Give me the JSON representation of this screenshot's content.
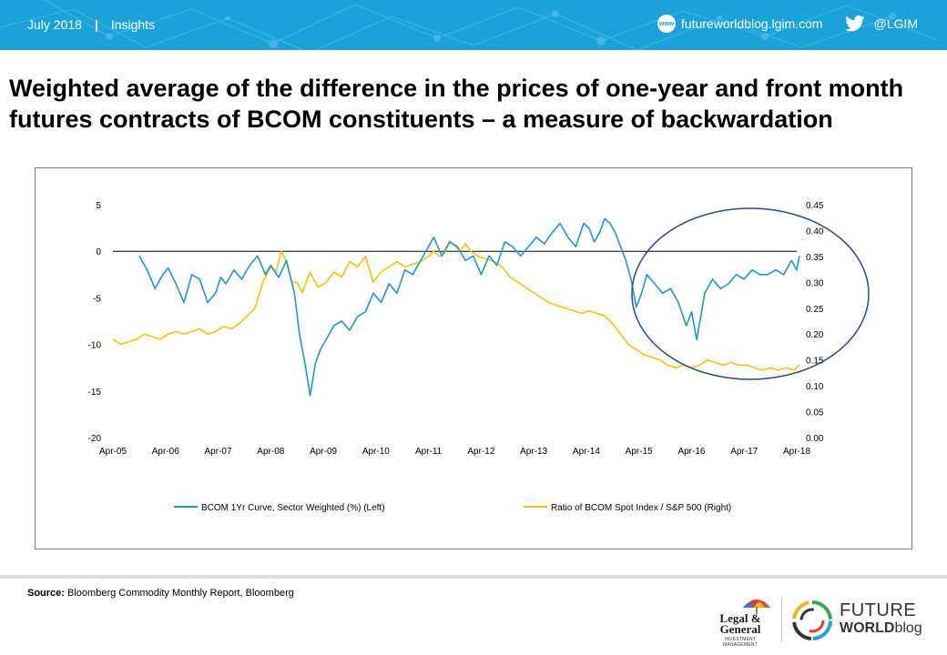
{
  "header": {
    "date": "July 2018",
    "separator": "|",
    "section": "Insights",
    "www_icon_label": "www",
    "website": "futureworldblog.lgim.com",
    "twitter_handle": "@LGIM"
  },
  "title_line1": "Weighted average of the difference in the prices of one-year and front month",
  "title_line2": "futures contracts of BCOM constituents – a measure of backwardation",
  "footer": {
    "source_label": "Source:",
    "source_text": " Bloomberg Commodity Monthly Report, Bloomberg",
    "lg_logo_line1": "Legal &",
    "lg_logo_line2": "General",
    "lg_logo_sub": "INVESTMENT MANAGEMENT",
    "fw_logo_line1": "FUTURE",
    "fw_logo_line2a": "WORLD",
    "fw_logo_line2b": "blog"
  },
  "colors": {
    "header_bg": "#1aa3d9",
    "series_left": "#1b9ad0",
    "series_right": "#ffc000",
    "circle": "#2e4a7d"
  },
  "chart_data": {
    "type": "line",
    "categories": [
      "Apr-05",
      "Apr-06",
      "Apr-07",
      "Apr-08",
      "Apr-09",
      "Apr-10",
      "Apr-11",
      "Apr-12",
      "Apr-13",
      "Apr-14",
      "Apr-15",
      "Apr-16",
      "Apr-17",
      "Apr-18"
    ],
    "y_left": {
      "min": -20,
      "max": 5,
      "ticks": [
        "5",
        "0",
        "-5",
        "-10",
        "-15",
        "-20"
      ]
    },
    "y_right": {
      "min": 0.0,
      "max": 0.45,
      "ticks": [
        "0.45",
        "0.40",
        "0.35",
        "0.30",
        "0.25",
        "0.20",
        "0.15",
        "0.10",
        "0.05",
        "0.00"
      ]
    },
    "legend_position": "bottom",
    "annotation": "ellipse around Apr-15 to Apr-18",
    "series": [
      {
        "name": "BCOM 1Yr Curve, Sector Weighted (%) (Left)",
        "axis": "left",
        "color": "#1b9ad0",
        "x": [
          2005.5,
          2005.65,
          2005.8,
          2005.95,
          2006.05,
          2006.2,
          2006.35,
          2006.5,
          2006.65,
          2006.8,
          2006.95,
          2007.05,
          2007.15,
          2007.3,
          2007.45,
          2007.6,
          2007.75,
          2007.9,
          2008.0,
          2008.15,
          2008.3,
          2008.45,
          2008.55,
          2008.65,
          2008.75,
          2008.85,
          2008.95,
          2009.05,
          2009.2,
          2009.35,
          2009.5,
          2009.65,
          2009.8,
          2009.95,
          2010.1,
          2010.25,
          2010.4,
          2010.55,
          2010.7,
          2010.85,
          2011.0,
          2011.1,
          2011.25,
          2011.4,
          2011.55,
          2011.7,
          2011.85,
          2012.0,
          2012.15,
          2012.3,
          2012.45,
          2012.6,
          2012.75,
          2012.9,
          2013.05,
          2013.2,
          2013.35,
          2013.5,
          2013.65,
          2013.8,
          2013.95,
          2014.05,
          2014.15,
          2014.25,
          2014.35,
          2014.45,
          2014.55,
          2014.65,
          2014.75,
          2014.85,
          2014.95,
          2015.05,
          2015.15,
          2015.3,
          2015.45,
          2015.6,
          2015.75,
          2015.9,
          2016.0,
          2016.1,
          2016.25,
          2016.4,
          2016.55,
          2016.7,
          2016.85,
          2017.0,
          2017.15,
          2017.3,
          2017.45,
          2017.6,
          2017.75,
          2017.9,
          2018.0,
          2018.05
        ],
        "values": [
          -0.5,
          -2.0,
          -4.0,
          -2.5,
          -1.8,
          -3.5,
          -5.5,
          -2.5,
          -3.0,
          -5.5,
          -4.5,
          -2.8,
          -3.5,
          -2.0,
          -3.0,
          -1.5,
          -0.5,
          -2.5,
          -1.5,
          -2.8,
          -1.0,
          -4.5,
          -9.0,
          -12.0,
          -15.5,
          -12.0,
          -10.5,
          -9.5,
          -8.0,
          -7.5,
          -8.5,
          -7.0,
          -6.5,
          -4.5,
          -5.5,
          -3.5,
          -4.5,
          -2.0,
          -2.5,
          -1.0,
          0.5,
          1.5,
          -0.5,
          1.0,
          0.5,
          -1.0,
          -0.5,
          -2.5,
          -0.5,
          -1.5,
          1.0,
          0.5,
          -0.5,
          0.5,
          1.5,
          0.8,
          2.0,
          3.0,
          1.5,
          0.5,
          3.0,
          2.5,
          1.0,
          2.0,
          3.5,
          3.0,
          2.0,
          0.5,
          -1.0,
          -3.0,
          -6.0,
          -4.5,
          -2.5,
          -3.5,
          -4.5,
          -4.0,
          -5.5,
          -8.0,
          -6.5,
          -9.5,
          -4.5,
          -3.0,
          -4.0,
          -3.5,
          -2.5,
          -3.0,
          -2.0,
          -2.5,
          -2.5,
          -2.0,
          -2.5,
          -1.0,
          -2.0,
          -0.5
        ]
      },
      {
        "name": "Ratio of BCOM Spot Index / S&P 500 (Right)",
        "axis": "right",
        "color": "#ffc000",
        "x": [
          2005.0,
          2005.15,
          2005.3,
          2005.45,
          2005.6,
          2005.75,
          2005.9,
          2006.05,
          2006.2,
          2006.35,
          2006.5,
          2006.65,
          2006.8,
          2006.95,
          2007.1,
          2007.25,
          2007.4,
          2007.55,
          2007.7,
          2007.85,
          2008.0,
          2008.1,
          2008.2,
          2008.3,
          2008.4,
          2008.5,
          2008.6,
          2008.75,
          2008.9,
          2009.05,
          2009.2,
          2009.35,
          2009.5,
          2009.65,
          2009.8,
          2009.95,
          2010.1,
          2010.25,
          2010.4,
          2010.55,
          2010.7,
          2010.85,
          2011.0,
          2011.1,
          2011.2,
          2011.3,
          2011.4,
          2011.5,
          2011.6,
          2011.7,
          2011.8,
          2011.95,
          2012.1,
          2012.25,
          2012.4,
          2012.55,
          2012.7,
          2012.85,
          2013.0,
          2013.15,
          2013.3,
          2013.45,
          2013.6,
          2013.75,
          2013.9,
          2014.05,
          2014.2,
          2014.35,
          2014.5,
          2014.65,
          2014.8,
          2014.95,
          2015.1,
          2015.25,
          2015.4,
          2015.55,
          2015.7,
          2015.85,
          2016.0,
          2016.15,
          2016.3,
          2016.45,
          2016.6,
          2016.75,
          2016.9,
          2017.05,
          2017.2,
          2017.35,
          2017.5,
          2017.65,
          2017.8,
          2017.95,
          2018.05
        ],
        "values": [
          0.19,
          0.18,
          0.185,
          0.19,
          0.2,
          0.195,
          0.19,
          0.2,
          0.205,
          0.2,
          0.205,
          0.21,
          0.2,
          0.205,
          0.215,
          0.21,
          0.22,
          0.235,
          0.25,
          0.3,
          0.33,
          0.32,
          0.36,
          0.34,
          0.3,
          0.3,
          0.28,
          0.32,
          0.29,
          0.3,
          0.32,
          0.31,
          0.34,
          0.33,
          0.35,
          0.3,
          0.32,
          0.33,
          0.34,
          0.33,
          0.335,
          0.34,
          0.35,
          0.36,
          0.35,
          0.355,
          0.38,
          0.37,
          0.36,
          0.375,
          0.36,
          0.35,
          0.345,
          0.34,
          0.33,
          0.31,
          0.3,
          0.29,
          0.28,
          0.27,
          0.26,
          0.255,
          0.25,
          0.245,
          0.24,
          0.245,
          0.24,
          0.235,
          0.22,
          0.2,
          0.18,
          0.17,
          0.16,
          0.155,
          0.15,
          0.14,
          0.135,
          0.14,
          0.135,
          0.14,
          0.15,
          0.145,
          0.14,
          0.145,
          0.14,
          0.14,
          0.135,
          0.13,
          0.135,
          0.13,
          0.135,
          0.13,
          0.14
        ]
      }
    ]
  }
}
